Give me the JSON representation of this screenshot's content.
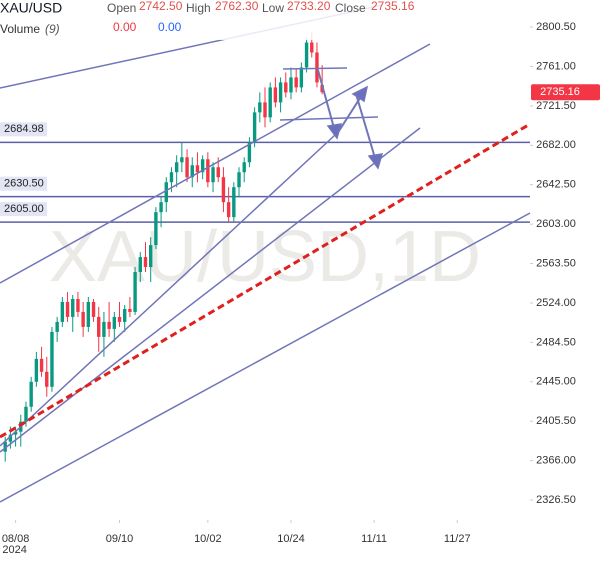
{
  "chart_data": {
    "type": "candlestick",
    "title": "XAU/USD",
    "watermark": "XAU/USD,1D",
    "indicator": {
      "name": "Volume",
      "params": "(9)",
      "values": [
        {
          "value": 0,
          "label": "0.00",
          "color": "#f23645"
        },
        {
          "value": 0,
          "label": "0.00",
          "color": "#2962ff"
        }
      ]
    },
    "header_values": [
      {
        "name": "Open",
        "value": 2742.5,
        "label": "2742.50"
      },
      {
        "name": "High",
        "value": 2762.3,
        "label": "2762.30"
      },
      {
        "name": "Low",
        "value": 2733.2,
        "label": "2733.20"
      },
      {
        "name": "Close",
        "value": 2735.16,
        "label": "2735.16"
      }
    ],
    "up_color": "#089981",
    "down_color": "#f23645",
    "price_tag_color": "#f23645",
    "level_color": "#5a5fa8",
    "xlim": [
      -1,
      101
    ],
    "ylim": [
      2306.5,
      2827.6
    ],
    "xticks": [
      {
        "value": 2,
        "label": "08/08"
      },
      {
        "value": 22,
        "label": "09/10"
      },
      {
        "value": 39,
        "label": "10/02"
      },
      {
        "value": 55,
        "label": "10/24"
      },
      {
        "value": 71,
        "label": "11/11"
      },
      {
        "value": 87,
        "label": "11/27"
      }
    ],
    "year_label": "2024",
    "yticks": [
      {
        "value": 2800.5,
        "label": "2800.50"
      },
      {
        "value": 2761,
        "label": "2761.00"
      },
      {
        "value": 2721.5,
        "label": "2721.50"
      },
      {
        "value": 2682,
        "label": "2682.00"
      },
      {
        "value": 2642.5,
        "label": "2642.50"
      },
      {
        "value": 2603,
        "label": "2603.00"
      },
      {
        "value": 2563.5,
        "label": "2563.50"
      },
      {
        "value": 2524,
        "label": "2524.00"
      },
      {
        "value": 2484.5,
        "label": "2484.50"
      },
      {
        "value": 2445,
        "label": "2445.00"
      },
      {
        "value": 2405.5,
        "label": "2405.50"
      },
      {
        "value": 2366,
        "label": "2366.00"
      },
      {
        "value": 2326.5,
        "label": "2326.50"
      }
    ],
    "levels": [
      2684.98,
      {
        "value": 2630.5,
        "label": "2630.50"
      },
      {
        "value": 2605,
        "label": "2605.00"
      }
    ],
    "open": [
      2375,
      2385,
      2392,
      2395,
      2405,
      2420,
      2445,
      2468,
      2455,
      2440,
      2495,
      2505,
      2525,
      2510,
      2528,
      2515,
      2500,
      2525,
      2510,
      2490,
      2505,
      2498,
      2510,
      2505,
      2518,
      2515,
      2555,
      2570,
      2560,
      2582,
      2615,
      2625,
      2645,
      2655,
      2665,
      2670,
      2650,
      2662,
      2655,
      2668,
      2645,
      2660,
      2650,
      2625,
      2610,
      2640,
      2655,
      2665,
      2685,
      2715,
      2725,
      2710,
      2740,
      2725,
      2745,
      2735,
      2750,
      2740,
      2760,
      2785,
      2775,
      2742.5
    ],
    "high": [
      2390,
      2400,
      2400,
      2412,
      2425,
      2450,
      2475,
      2480,
      2470,
      2500,
      2510,
      2530,
      2535,
      2532,
      2535,
      2525,
      2530,
      2528,
      2520,
      2515,
      2525,
      2515,
      2525,
      2522,
      2530,
      2560,
      2575,
      2585,
      2590,
      2620,
      2630,
      2650,
      2660,
      2672,
      2685,
      2678,
      2670,
      2675,
      2672,
      2675,
      2665,
      2670,
      2660,
      2640,
      2645,
      2660,
      2670,
      2690,
      2720,
      2735,
      2740,
      2745,
      2750,
      2750,
      2755,
      2760,
      2758,
      2765,
      2790,
      2795,
      2785,
      2762.3
    ],
    "low": [
      2365,
      2378,
      2380,
      2380,
      2400,
      2415,
      2440,
      2450,
      2430,
      2435,
      2485,
      2500,
      2505,
      2495,
      2510,
      2490,
      2495,
      2505,
      2475,
      2470,
      2490,
      2485,
      2500,
      2495,
      2510,
      2512,
      2545,
      2555,
      2545,
      2578,
      2600,
      2615,
      2635,
      2640,
      2655,
      2645,
      2640,
      2645,
      2648,
      2640,
      2635,
      2645,
      2615,
      2605,
      2605,
      2630,
      2645,
      2660,
      2680,
      2705,
      2700,
      2705,
      2720,
      2715,
      2730,
      2728,
      2735,
      2735,
      2755,
      2770,
      2740,
      2733.2
    ],
    "close": [
      2385,
      2392,
      2395,
      2405,
      2420,
      2445,
      2468,
      2455,
      2440,
      2495,
      2505,
      2525,
      2510,
      2528,
      2515,
      2500,
      2525,
      2510,
      2490,
      2505,
      2498,
      2510,
      2505,
      2518,
      2515,
      2555,
      2570,
      2560,
      2582,
      2615,
      2625,
      2645,
      2655,
      2665,
      2670,
      2650,
      2662,
      2655,
      2668,
      2645,
      2660,
      2650,
      2625,
      2610,
      2640,
      2655,
      2665,
      2685,
      2715,
      2725,
      2710,
      2740,
      2725,
      2745,
      2735,
      2750,
      2740,
      2760,
      2785,
      2775,
      2745,
      2735.16
    ]
  }
}
